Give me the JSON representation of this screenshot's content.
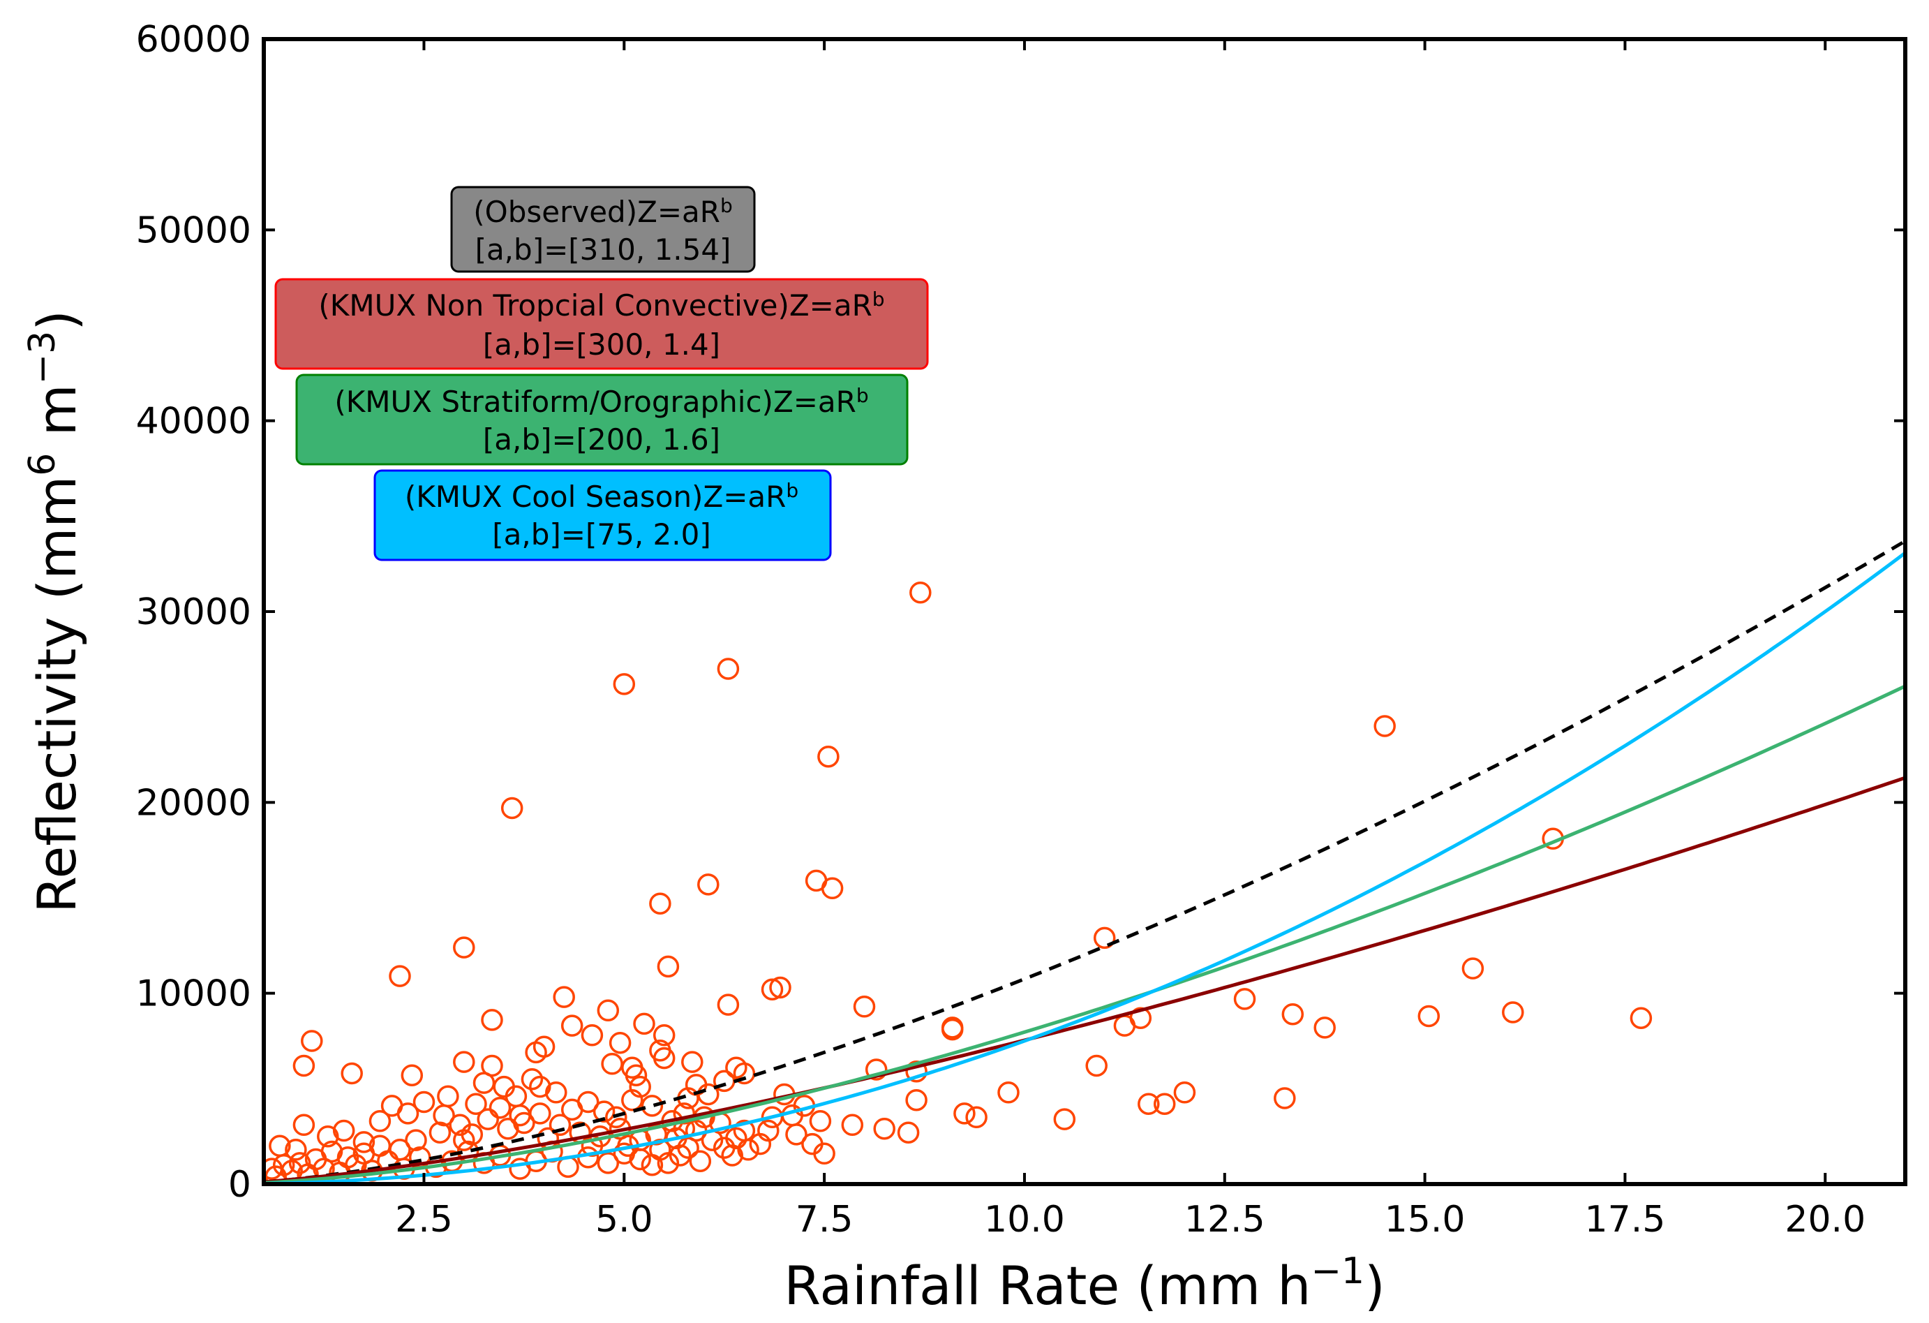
{
  "chart_data": {
    "type": "scatter",
    "xlabel": "Rainfall Rate (mm h",
    "xlabel_sup": "−1",
    "xlabel_close": ")",
    "ylabel": "Reflectivity (mm",
    "ylabel_sup1": "6",
    "ylabel_mid": " m",
    "ylabel_sup2": "−3",
    "ylabel_close": ")",
    "xlim": [
      0.5,
      21.0
    ],
    "ylim": [
      0,
      60000
    ],
    "x_ticks": [
      2.5,
      5.0,
      7.5,
      10.0,
      12.5,
      15.0,
      17.5,
      20.0
    ],
    "x_tick_labels": [
      "2.5",
      "5.0",
      "7.5",
      "10.0",
      "12.5",
      "15.0",
      "17.5",
      "20.0"
    ],
    "y_ticks": [
      0,
      10000,
      20000,
      30000,
      40000,
      50000,
      60000
    ],
    "y_tick_labels": [
      "0",
      "10000",
      "20000",
      "30000",
      "40000",
      "50000",
      "60000"
    ],
    "grid": false,
    "legend_boxes": [
      {
        "line1": "(Observed)Z=aR",
        "sup": "b",
        "line2": "[a,b]=[310, 1.54]",
        "fill": "#888888",
        "border": "#000000"
      },
      {
        "line1": "(KMUX Non Tropcial Convective)Z=aR",
        "sup": "b",
        "line2": "[a,b]=[300, 1.4]",
        "fill": "#cd5c5c",
        "border": "#ff0000"
      },
      {
        "line1": "(KMUX Stratiform/Orographic)Z=aR",
        "sup": "b",
        "line2": "[a,b]=[200, 1.6]",
        "fill": "#3cb371",
        "border": "#008000"
      },
      {
        "line1": "(KMUX Cool Season)Z=aR",
        "sup": "b",
        "line2": "[a,b]=[75, 2.0]",
        "fill": "#00bfff",
        "border": "#0000ff"
      }
    ],
    "curves": [
      {
        "a": 310,
        "b": 1.54,
        "color": "#000000",
        "dashed": true
      },
      {
        "a": 300,
        "b": 1.4,
        "color": "#8b0000",
        "dashed": false
      },
      {
        "a": 200,
        "b": 1.6,
        "color": "#3cb371",
        "dashed": false
      },
      {
        "a": 75,
        "b": 2.0,
        "color": "#00bfff",
        "dashed": false
      }
    ],
    "scatter_color": "#ff4500",
    "points": [
      [
        8.7,
        31000
      ],
      [
        6.3,
        27000
      ],
      [
        5.0,
        26200
      ],
      [
        14.5,
        24000
      ],
      [
        7.55,
        22400
      ],
      [
        3.6,
        19700
      ],
      [
        16.6,
        18100
      ],
      [
        7.4,
        15900
      ],
      [
        7.6,
        15500
      ],
      [
        6.05,
        15700
      ],
      [
        5.45,
        14700
      ],
      [
        3.0,
        12400
      ],
      [
        11.0,
        12900
      ],
      [
        2.2,
        10900
      ],
      [
        5.55,
        11400
      ],
      [
        4.25,
        9800
      ],
      [
        4.8,
        9100
      ],
      [
        6.95,
        10300
      ],
      [
        6.85,
        10200
      ],
      [
        8.0,
        9300
      ],
      [
        6.3,
        9400
      ],
      [
        9.1,
        8100
      ],
      [
        9.1,
        8200
      ],
      [
        11.45,
        8700
      ],
      [
        11.25,
        8300
      ],
      [
        12.75,
        9700
      ],
      [
        13.35,
        8900
      ],
      [
        13.75,
        8200
      ],
      [
        15.05,
        8800
      ],
      [
        15.6,
        11300
      ],
      [
        16.1,
        9000
      ],
      [
        17.7,
        8700
      ],
      [
        10.9,
        6200
      ],
      [
        8.65,
        5900
      ],
      [
        8.65,
        4400
      ],
      [
        9.8,
        4800
      ],
      [
        9.25,
        3700
      ],
      [
        9.4,
        3500
      ],
      [
        10.5,
        3400
      ],
      [
        11.55,
        4200
      ],
      [
        11.75,
        4200
      ],
      [
        12.0,
        4800
      ],
      [
        13.25,
        4500
      ],
      [
        8.15,
        6000
      ],
      [
        8.55,
        2700
      ],
      [
        8.25,
        2900
      ],
      [
        7.85,
        3100
      ],
      [
        7.45,
        3300
      ],
      [
        7.5,
        1600
      ],
      [
        7.35,
        2100
      ],
      [
        7.15,
        2600
      ],
      [
        7.25,
        4100
      ],
      [
        7.0,
        4700
      ],
      [
        6.85,
        3500
      ],
      [
        6.5,
        2800
      ],
      [
        6.55,
        1800
      ],
      [
        6.25,
        1900
      ],
      [
        6.1,
        2300
      ],
      [
        6.0,
        3500
      ],
      [
        5.75,
        3700
      ],
      [
        5.8,
        4500
      ],
      [
        5.9,
        5200
      ],
      [
        5.85,
        6400
      ],
      [
        5.45,
        7000
      ],
      [
        5.5,
        6600
      ],
      [
        5.5,
        7800
      ],
      [
        5.25,
        8400
      ],
      [
        5.15,
        5700
      ],
      [
        5.2,
        5100
      ],
      [
        5.1,
        6100
      ],
      [
        4.95,
        7400
      ],
      [
        4.85,
        6300
      ],
      [
        4.6,
        7800
      ],
      [
        4.35,
        8300
      ],
      [
        3.9,
        6900
      ],
      [
        4.0,
        7200
      ],
      [
        3.35,
        8600
      ],
      [
        3.35,
        6200
      ],
      [
        3.0,
        6400
      ],
      [
        3.25,
        5300
      ],
      [
        3.5,
        5100
      ],
      [
        3.65,
        4600
      ],
      [
        3.85,
        5500
      ],
      [
        3.95,
        5100
      ],
      [
        4.15,
        4800
      ],
      [
        4.35,
        3900
      ],
      [
        4.55,
        4300
      ],
      [
        4.75,
        3800
      ],
      [
        4.9,
        3500
      ],
      [
        5.1,
        4400
      ],
      [
        5.35,
        4100
      ],
      [
        5.6,
        3300
      ],
      [
        5.75,
        2900
      ],
      [
        5.95,
        1200
      ],
      [
        5.7,
        1500
      ],
      [
        5.45,
        1800
      ],
      [
        5.35,
        1000
      ],
      [
        5.2,
        1300
      ],
      [
        5.0,
        1600
      ],
      [
        4.8,
        1100
      ],
      [
        4.55,
        1400
      ],
      [
        4.3,
        900
      ],
      [
        4.1,
        1700
      ],
      [
        3.9,
        1200
      ],
      [
        3.7,
        800
      ],
      [
        3.45,
        1500
      ],
      [
        3.25,
        1100
      ],
      [
        3.05,
        1700
      ],
      [
        2.85,
        1200
      ],
      [
        2.65,
        900
      ],
      [
        2.45,
        1400
      ],
      [
        2.25,
        800
      ],
      [
        2.05,
        1200
      ],
      [
        1.85,
        700
      ],
      [
        1.65,
        1000
      ],
      [
        1.45,
        600
      ],
      [
        1.25,
        800
      ],
      [
        1.05,
        500
      ],
      [
        0.85,
        700
      ],
      [
        0.65,
        400
      ],
      [
        0.7,
        2000
      ],
      [
        0.9,
        1800
      ],
      [
        1.0,
        3100
      ],
      [
        1.0,
        6200
      ],
      [
        1.1,
        7500
      ],
      [
        1.6,
        5800
      ],
      [
        1.3,
        2500
      ],
      [
        1.5,
        2800
      ],
      [
        1.75,
        2200
      ],
      [
        1.95,
        3300
      ],
      [
        2.1,
        4100
      ],
      [
        2.3,
        3700
      ],
      [
        2.35,
        5700
      ],
      [
        2.5,
        4300
      ],
      [
        2.75,
        3600
      ],
      [
        2.8,
        4600
      ],
      [
        2.95,
        3100
      ],
      [
        3.1,
        2600
      ],
      [
        3.3,
        3400
      ],
      [
        3.55,
        2900
      ],
      [
        3.75,
        3200
      ],
      [
        3.95,
        3700
      ],
      [
        4.2,
        3100
      ],
      [
        4.45,
        2700
      ],
      [
        4.7,
        2500
      ],
      [
        4.95,
        2900
      ],
      [
        5.2,
        2300
      ],
      [
        5.4,
        2600
      ],
      [
        5.65,
        2400
      ],
      [
        5.9,
        2800
      ],
      [
        6.2,
        3200
      ],
      [
        6.4,
        2400
      ],
      [
        6.7,
        2100
      ],
      [
        6.05,
        4700
      ],
      [
        6.25,
        5400
      ],
      [
        6.4,
        6100
      ],
      [
        6.5,
        5800
      ],
      [
        3.0,
        2300
      ],
      [
        2.7,
        2700
      ],
      [
        2.4,
        2300
      ],
      [
        2.2,
        1800
      ],
      [
        1.95,
        2000
      ],
      [
        1.75,
        1600
      ],
      [
        1.55,
        1400
      ],
      [
        1.35,
        1700
      ],
      [
        1.15,
        1300
      ],
      [
        0.95,
        1100
      ],
      [
        0.75,
        1000
      ],
      [
        0.6,
        800
      ],
      [
        3.15,
        4200
      ],
      [
        3.45,
        4000
      ],
      [
        3.7,
        3600
      ],
      [
        4.05,
        2400
      ],
      [
        4.6,
        2000
      ],
      [
        5.05,
        2000
      ],
      [
        5.55,
        1100
      ],
      [
        5.8,
        1900
      ],
      [
        6.35,
        1500
      ],
      [
        6.8,
        2800
      ],
      [
        7.1,
        3600
      ]
    ]
  }
}
